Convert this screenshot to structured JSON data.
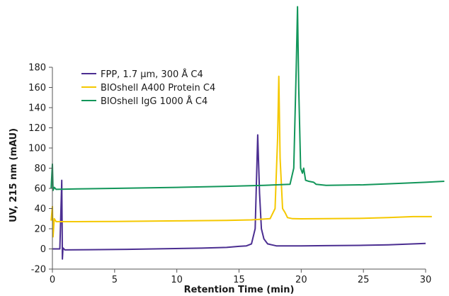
{
  "chart_data": {
    "type": "line",
    "title": "",
    "xlabel": "Retention Time (min)",
    "ylabel": "UV, 215 nm (mAU)",
    "xlim": [
      0,
      30
    ],
    "ylim": [
      -20,
      180
    ],
    "x_ticks": [
      0,
      5,
      10,
      15,
      20,
      25,
      30
    ],
    "y_ticks": [
      -20,
      0,
      20,
      40,
      60,
      80,
      100,
      120,
      140,
      160,
      180
    ],
    "grid": false,
    "legend_position": "top-left",
    "series": [
      {
        "name": "FPP, 1.7 µm, 300 Å C4",
        "color": "#4b2e91",
        "points": [
          [
            0,
            0
          ],
          [
            0.6,
            0
          ],
          [
            0.75,
            68
          ],
          [
            0.8,
            -10
          ],
          [
            0.85,
            1
          ],
          [
            1.0,
            -1
          ],
          [
            3,
            -0.8
          ],
          [
            6,
            -0.4
          ],
          [
            9,
            0.2
          ],
          [
            12,
            0.8
          ],
          [
            14,
            1.5
          ],
          [
            15,
            2.5
          ],
          [
            15.6,
            3
          ],
          [
            16.0,
            5
          ],
          [
            16.3,
            20
          ],
          [
            16.5,
            113
          ],
          [
            16.65,
            55
          ],
          [
            16.8,
            20
          ],
          [
            17.0,
            10
          ],
          [
            17.3,
            5
          ],
          [
            18,
            3
          ],
          [
            20,
            3
          ],
          [
            22,
            3.2
          ],
          [
            25,
            3.6
          ],
          [
            27,
            4.1
          ],
          [
            30,
            5.5
          ]
        ]
      },
      {
        "name": "BIOshell A400 Protein C4",
        "color": "#f5c800",
        "points": [
          [
            -0.1,
            28
          ],
          [
            0,
            42
          ],
          [
            0.05,
            12
          ],
          [
            0.15,
            30
          ],
          [
            0.3,
            27
          ],
          [
            2,
            27
          ],
          [
            5,
            27.2
          ],
          [
            10,
            27.8
          ],
          [
            14,
            28.3
          ],
          [
            16,
            28.8
          ],
          [
            17.5,
            30
          ],
          [
            17.9,
            40
          ],
          [
            18.1,
            110
          ],
          [
            18.2,
            171
          ],
          [
            18.3,
            90
          ],
          [
            18.5,
            40
          ],
          [
            18.7,
            36
          ],
          [
            18.9,
            31
          ],
          [
            19.3,
            30
          ],
          [
            20,
            29.8
          ],
          [
            22,
            30
          ],
          [
            25,
            30.3
          ],
          [
            27,
            31
          ],
          [
            29,
            32
          ],
          [
            30.5,
            32
          ]
        ]
      },
      {
        "name": "BIOshell IgG 1000 Å C4",
        "color": "#12965a",
        "points": [
          [
            -0.1,
            60
          ],
          [
            0,
            84
          ],
          [
            0.05,
            58
          ],
          [
            0.15,
            61
          ],
          [
            0.3,
            59
          ],
          [
            2,
            59.5
          ],
          [
            5,
            60
          ],
          [
            10,
            61
          ],
          [
            14,
            62
          ],
          [
            17,
            63
          ],
          [
            19.1,
            64
          ],
          [
            19.4,
            80
          ],
          [
            19.6,
            180
          ],
          [
            19.7,
            240
          ],
          [
            19.8,
            160
          ],
          [
            19.95,
            80
          ],
          [
            20.1,
            75
          ],
          [
            20.2,
            80
          ],
          [
            20.35,
            68
          ],
          [
            20.6,
            67
          ],
          [
            21,
            66
          ],
          [
            21.2,
            64
          ],
          [
            22,
            63
          ],
          [
            25,
            63.5
          ],
          [
            28,
            65
          ],
          [
            30,
            66
          ],
          [
            31.5,
            67
          ]
        ]
      }
    ]
  }
}
